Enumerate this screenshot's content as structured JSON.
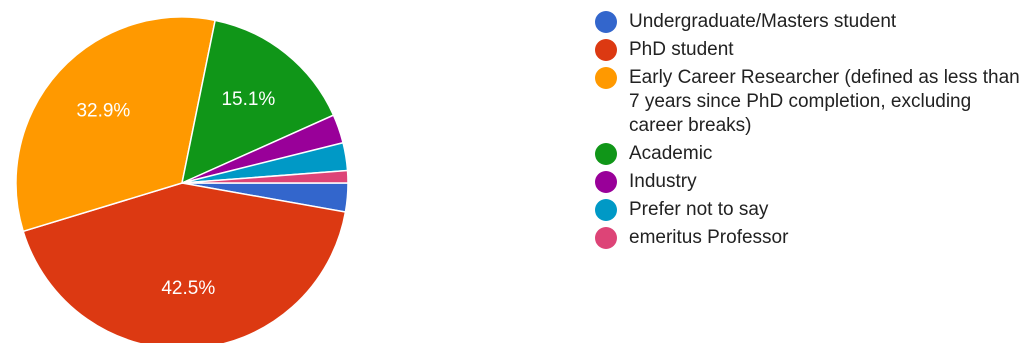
{
  "chart_data": {
    "type": "pie",
    "title": "",
    "slices": [
      {
        "label": "Undergraduate/Masters student",
        "value": 2.8,
        "color": "#3366cc",
        "data_label": ""
      },
      {
        "label": "PhD student",
        "value": 42.5,
        "color": "#dc3912",
        "data_label": "42.5%"
      },
      {
        "label": "Early Career Researcher (defined as less than 7 years since PhD completion, excluding career breaks)",
        "value": 32.9,
        "color": "#ff9900",
        "data_label": "32.9%"
      },
      {
        "label": "Academic",
        "value": 15.1,
        "color": "#109618",
        "data_label": "15.1%"
      },
      {
        "label": "Industry",
        "value": 2.8,
        "color": "#990099",
        "data_label": ""
      },
      {
        "label": "Prefer not to say",
        "value": 2.7,
        "color": "#0099c6",
        "data_label": ""
      },
      {
        "label": "emeritus Professor",
        "value": 1.2,
        "color": "#dd4477",
        "data_label": ""
      }
    ],
    "legend_position": "right"
  }
}
